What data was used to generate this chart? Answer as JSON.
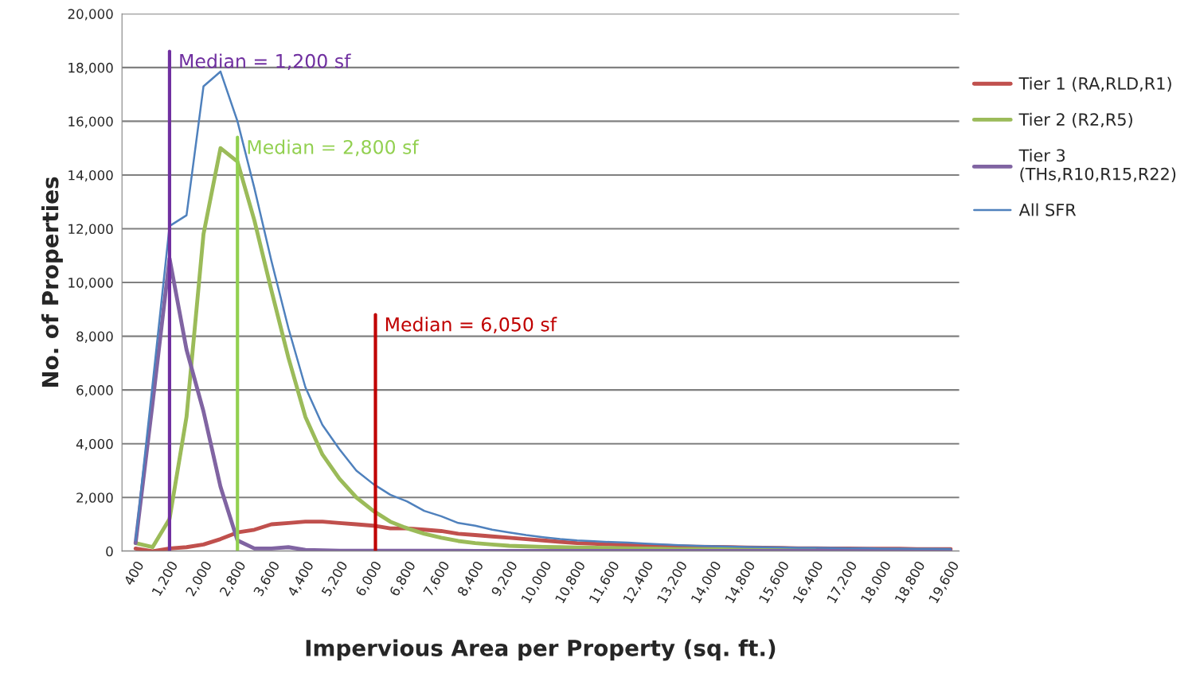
{
  "chart_data": {
    "type": "line",
    "xlabel": "Impervious Area per Property (sq. ft.)",
    "ylabel": "No. of Properties",
    "x": [
      400,
      800,
      1200,
      1600,
      2000,
      2400,
      2800,
      3200,
      3600,
      4000,
      4400,
      4800,
      5200,
      5600,
      6000,
      6400,
      6800,
      7200,
      7600,
      8000,
      8400,
      8800,
      9200,
      9600,
      10000,
      10400,
      10800,
      11200,
      11600,
      12000,
      12400,
      12800,
      13200,
      13600,
      14000,
      14400,
      14800,
      15200,
      15600,
      16000,
      16400,
      16800,
      17200,
      17600,
      18000,
      18400,
      18800,
      19200,
      19600
    ],
    "series": [
      {
        "name": "Tier 1 (RA,RLD,R1)",
        "color": "#c0504d",
        "values": [
          100,
          0,
          100,
          150,
          250,
          450,
          700,
          800,
          1000,
          1050,
          1100,
          1100,
          1050,
          1000,
          950,
          850,
          850,
          800,
          750,
          650,
          600,
          550,
          500,
          450,
          400,
          350,
          300,
          280,
          250,
          230,
          210,
          200,
          180,
          170,
          160,
          150,
          140,
          130,
          120,
          110,
          110,
          100,
          100,
          90,
          90,
          90,
          80,
          80,
          80
        ]
      },
      {
        "name": "Tier 2 (R2,R5)",
        "color": "#9bbb59",
        "values": [
          300,
          150,
          1200,
          5000,
          11800,
          15000,
          14500,
          12300,
          9700,
          7200,
          5000,
          3600,
          2700,
          2000,
          1500,
          1100,
          850,
          650,
          500,
          380,
          300,
          250,
          200,
          180,
          160,
          150,
          140,
          130,
          120,
          110,
          100,
          90,
          80,
          80,
          70,
          70,
          60,
          60,
          50,
          50,
          50,
          null,
          null,
          null,
          null,
          null,
          null,
          null,
          null
        ]
      },
      {
        "name": "Tier 3\n(THs,R10,R15,R22)",
        "color": "#8064a2",
        "values": [
          300,
          5500,
          10900,
          7500,
          5200,
          2400,
          400,
          100,
          100,
          150,
          50,
          30,
          20,
          20,
          20,
          20,
          20,
          20,
          20,
          20,
          10,
          10,
          10,
          10,
          10,
          10,
          10,
          10,
          10,
          10,
          10,
          10,
          10,
          10,
          10,
          10,
          10,
          10,
          10,
          10,
          10,
          10,
          10,
          10,
          10,
          10,
          10,
          10,
          10
        ]
      },
      {
        "name": "All SFR",
        "color": "#4f81bd",
        "values": [
          400,
          6200,
          12100,
          12500,
          17300,
          17850,
          16000,
          13500,
          10800,
          8300,
          6100,
          4700,
          3800,
          3000,
          2500,
          2100,
          1850,
          1500,
          1300,
          1050,
          950,
          800,
          700,
          600,
          520,
          450,
          400,
          370,
          340,
          320,
          280,
          250,
          220,
          200,
          190,
          170,
          160,
          150,
          140,
          130,
          130,
          120,
          110,
          110,
          100,
          100,
          90,
          90,
          80
        ]
      },
      {
        "color": "#7030a0",
        "x": [
          1200,
          1200
        ],
        "values": [
          0,
          18600
        ]
      },
      {
        "color": "#92d050",
        "x": [
          2800,
          2800
        ],
        "values": [
          0,
          15400
        ]
      },
      {
        "color": "#c00000",
        "x": [
          6050,
          6050
        ],
        "values": [
          0,
          8800
        ]
      }
    ],
    "annotations": [
      {
        "text": "Median = 1,200 sf",
        "x": 1200,
        "y": 18600
      },
      {
        "text": "Median = 2,800 sf",
        "x": 2800,
        "y": 15400
      },
      {
        "text": "Median = 6,050 sf",
        "x": 6050,
        "y": 8800
      }
    ],
    "xlim": [
      80,
      19800
    ],
    "xticks": [
      {
        "value": 400,
        "label": "400"
      },
      {
        "value": 1200,
        "label": "1,200"
      },
      {
        "value": 2000,
        "label": "2,000"
      },
      {
        "value": 2800,
        "label": "2,800"
      },
      {
        "value": 3600,
        "label": "3,600"
      },
      {
        "value": 4400,
        "label": "4,400"
      },
      {
        "value": 5200,
        "label": "5,200"
      },
      {
        "value": 6000,
        "label": "6,000"
      },
      {
        "value": 6800,
        "label": "6,800"
      },
      {
        "value": 7600,
        "label": "7,600"
      },
      {
        "value": 8400,
        "label": "8,400"
      },
      {
        "value": 9200,
        "label": "9,200"
      },
      {
        "value": 10000,
        "label": "10,000"
      },
      {
        "value": 10800,
        "label": "10,800"
      },
      {
        "value": 11600,
        "label": "11,600"
      },
      {
        "value": 12400,
        "label": "12,400"
      },
      {
        "value": 13200,
        "label": "13,200"
      },
      {
        "value": 14000,
        "label": "14,000"
      },
      {
        "value": 14800,
        "label": "14,800"
      },
      {
        "value": 15600,
        "label": "15,600"
      },
      {
        "value": 16400,
        "label": "16,400"
      },
      {
        "value": 17200,
        "label": "17,200"
      },
      {
        "value": 18000,
        "label": "18,000"
      },
      {
        "value": 18800,
        "label": "18,800"
      },
      {
        "value": 19600,
        "label": "19,600"
      }
    ],
    "ylim": [
      0,
      20000
    ],
    "yticks": [
      0,
      {
        "value": 2000,
        "label": "2,000"
      },
      {
        "value": 4000,
        "label": "4,000"
      },
      {
        "value": 6000,
        "label": "6,000"
      },
      {
        "value": 8000,
        "label": "8,000"
      },
      {
        "value": 10000,
        "label": "10,000"
      },
      {
        "value": 12000,
        "label": "12,000"
      },
      {
        "value": 14000,
        "label": "14,000"
      },
      {
        "value": 16000,
        "label": "16,000"
      },
      {
        "value": 18000,
        "label": "18,000"
      },
      {
        "value": 20000,
        "label": "20,000"
      }
    ],
    "grid": "y",
    "legend": "right",
    "marker": "none",
    "line_style": "solid"
  }
}
